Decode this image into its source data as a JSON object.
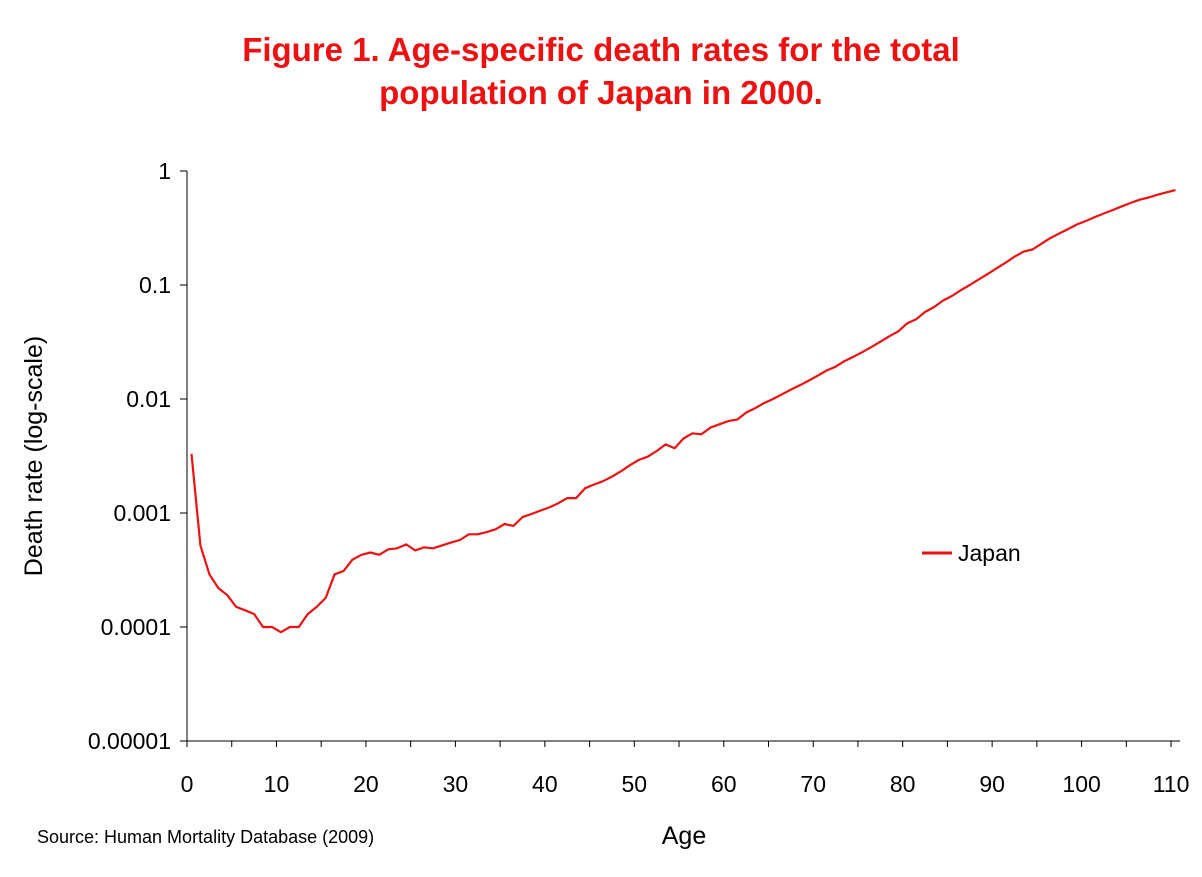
{
  "chart_data": {
    "type": "line",
    "title_line1": "Figure 1. Age-specific death rates for the total",
    "title_line2": "population of Japan in 2000.",
    "xlabel": "Age",
    "ylabel": "Death rate (log-scale)",
    "xlim": [
      0,
      111
    ],
    "ylim": [
      1e-05,
      1
    ],
    "yscale": "log",
    "x_ticks": [
      0,
      10,
      20,
      30,
      40,
      50,
      60,
      70,
      80,
      90,
      100,
      110
    ],
    "x_tick_labels": [
      "0",
      "10",
      "20",
      "30",
      "40",
      "50",
      "60",
      "70",
      "80",
      "90",
      "100",
      "110"
    ],
    "y_ticks": [
      1e-05,
      0.0001,
      0.001,
      0.01,
      0.1,
      1
    ],
    "y_tick_labels": [
      "0.00001",
      "0.0001",
      "0.001",
      "0.01",
      "0.1",
      "1"
    ],
    "grid": false,
    "legend_position": "right",
    "series": [
      {
        "name": "Japan",
        "color": "#ee1111",
        "x": [
          0,
          1,
          2,
          3,
          4,
          5,
          6,
          7,
          8,
          9,
          10,
          11,
          12,
          13,
          14,
          15,
          16,
          17,
          18,
          19,
          20,
          21,
          22,
          23,
          24,
          25,
          26,
          27,
          28,
          29,
          30,
          31,
          32,
          33,
          34,
          35,
          36,
          37,
          38,
          39,
          40,
          41,
          42,
          43,
          44,
          45,
          46,
          47,
          48,
          49,
          50,
          51,
          52,
          53,
          54,
          55,
          56,
          57,
          58,
          59,
          60,
          61,
          62,
          63,
          64,
          65,
          66,
          67,
          68,
          69,
          70,
          71,
          72,
          73,
          74,
          75,
          76,
          77,
          78,
          79,
          80,
          81,
          82,
          83,
          84,
          85,
          86,
          87,
          88,
          89,
          90,
          91,
          92,
          93,
          94,
          95,
          96,
          97,
          98,
          99,
          100,
          101,
          102,
          103,
          104,
          105,
          106,
          107,
          108,
          109,
          110
        ],
        "values": [
          0.0033,
          0.00052,
          0.00029,
          0.00022,
          0.00019,
          0.00015,
          0.00014,
          0.00013,
          0.0001,
          0.0001,
          9e-05,
          0.0001,
          0.0001,
          0.00013,
          0.00015,
          0.00018,
          0.00029,
          0.00031,
          0.00039,
          0.00043,
          0.00045,
          0.00043,
          0.00048,
          0.00049,
          0.00053,
          0.00047,
          0.0005,
          0.00049,
          0.00052,
          0.00055,
          0.00058,
          0.00065,
          0.00065,
          0.00068,
          0.00072,
          0.0008,
          0.00077,
          0.00092,
          0.00098,
          0.00105,
          0.00112,
          0.00122,
          0.00135,
          0.00135,
          0.00165,
          0.00178,
          0.0019,
          0.00208,
          0.00232,
          0.00262,
          0.00292,
          0.00312,
          0.0035,
          0.004,
          0.0037,
          0.0045,
          0.005,
          0.0049,
          0.0056,
          0.006,
          0.0064,
          0.0066,
          0.0076,
          0.0083,
          0.0092,
          0.01,
          0.011,
          0.0121,
          0.0132,
          0.0145,
          0.016,
          0.0178,
          0.0192,
          0.0215,
          0.0235,
          0.0258,
          0.0285,
          0.0318,
          0.0355,
          0.0392,
          0.046,
          0.05,
          0.058,
          0.064,
          0.073,
          0.08,
          0.09,
          0.1,
          0.112,
          0.125,
          0.14,
          0.157,
          0.177,
          0.196,
          0.205,
          0.23,
          0.258,
          0.283,
          0.31,
          0.34,
          0.365,
          0.395,
          0.425,
          0.455,
          0.49,
          0.525,
          0.56,
          0.585,
          0.62,
          0.65,
          0.68
        ]
      }
    ]
  },
  "source_text": "Source: Human Mortality Database (2009)"
}
